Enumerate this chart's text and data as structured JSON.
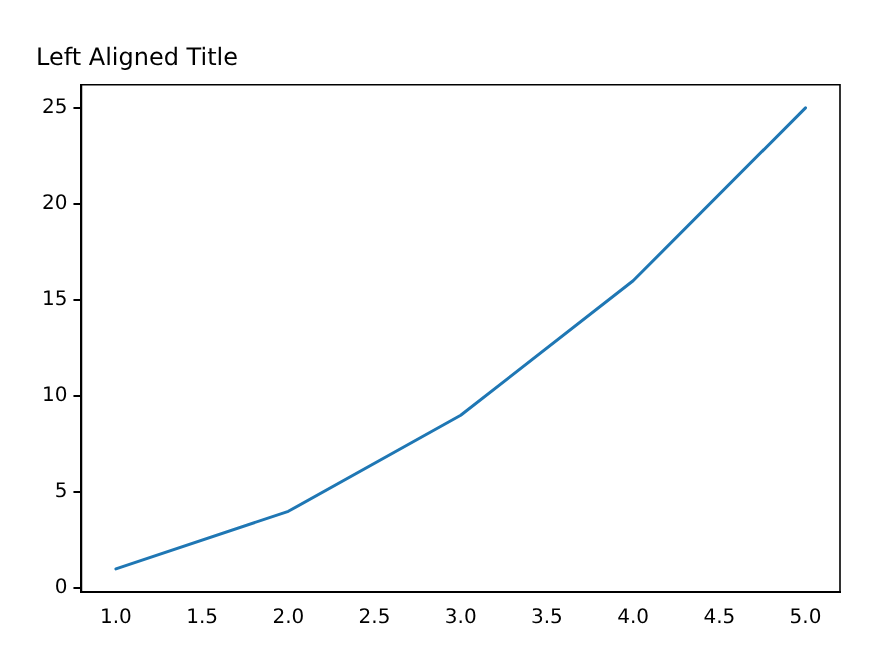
{
  "chart_data": {
    "type": "line",
    "title": "Left Aligned Title",
    "x": [
      1,
      2,
      3,
      4,
      5
    ],
    "series": [
      {
        "color": "#1f77b4",
        "values": [
          1,
          4,
          9,
          16,
          25
        ]
      }
    ],
    "xlim": [
      0.8,
      5.2
    ],
    "ylim": [
      -0.2,
      26.2
    ],
    "xticks": [
      {
        "value": 1,
        "label": "1.0"
      },
      {
        "value": 1.5,
        "label": "1.5"
      },
      {
        "value": 2,
        "label": "2.0"
      },
      {
        "value": 2.5,
        "label": "2.5"
      },
      {
        "value": 3,
        "label": "3.0"
      },
      {
        "value": 3.5,
        "label": "3.5"
      },
      {
        "value": 4,
        "label": "4.0"
      },
      {
        "value": 4.5,
        "label": "4.5"
      },
      {
        "value": 5,
        "label": "5.0"
      }
    ],
    "yticks": [
      0,
      5,
      10,
      15,
      20,
      25
    ],
    "grid": false,
    "legend": false,
    "marker": "none",
    "line_style": "solid"
  }
}
